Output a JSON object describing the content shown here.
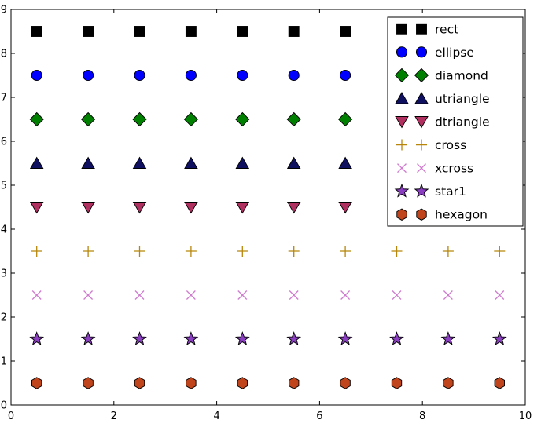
{
  "figure": {
    "background": "#ffffff",
    "frame_color": "#000000"
  },
  "chart_data": {
    "type": "scatter",
    "title": "",
    "xlabel": "",
    "ylabel": "",
    "xlim": [
      0,
      10
    ],
    "ylim": [
      0,
      9
    ],
    "grid": false,
    "xticks": [
      0,
      2,
      4,
      6,
      8,
      10
    ],
    "xtick_labels": [
      "0",
      "2",
      "4",
      "6",
      "8",
      "10"
    ],
    "yticks": [
      0,
      1,
      2,
      3,
      4,
      5,
      6,
      7,
      8,
      9
    ],
    "ytick_labels": [
      "0",
      "1",
      "2",
      "3",
      "4",
      "5",
      "6",
      "7",
      "8",
      "9"
    ],
    "x": [
      0.5,
      1.5,
      2.5,
      3.5,
      4.5,
      5.5,
      6.5,
      7.5,
      8.5,
      9.5
    ],
    "series": [
      {
        "name": "rect",
        "marker": "rect",
        "color": "#000000",
        "edge_color": "#000000",
        "y": 8.5
      },
      {
        "name": "ellipse",
        "marker": "ellipse",
        "color": "#0000ff",
        "edge_color": "#000000",
        "y": 7.5
      },
      {
        "name": "diamond",
        "marker": "diamond",
        "color": "#008000",
        "edge_color": "#000000",
        "y": 6.5
      },
      {
        "name": "utriangle",
        "marker": "utriangle",
        "color": "#101060",
        "edge_color": "#000000",
        "y": 5.5
      },
      {
        "name": "dtriangle",
        "marker": "dtriangle",
        "color": "#b03060",
        "edge_color": "#000000",
        "y": 4.5
      },
      {
        "name": "cross",
        "marker": "cross",
        "color": "#b8860b",
        "edge_color": "#b8860b",
        "y": 3.5
      },
      {
        "name": "xcross",
        "marker": "xcross",
        "color": "#cf7ccf",
        "edge_color": "#cf7ccf",
        "y": 2.5
      },
      {
        "name": "star1",
        "marker": "star1",
        "color": "#8a3fc0",
        "edge_color": "#000000",
        "y": 1.5
      },
      {
        "name": "hexagon",
        "marker": "hexagon",
        "color": "#c0451c",
        "edge_color": "#000000",
        "y": 0.5
      }
    ],
    "legend": {
      "position": "upper right",
      "numpoints": 2,
      "background": "#ffffff",
      "border_color": "#000000",
      "labels": [
        "rect",
        "ellipse",
        "diamond",
        "utriangle",
        "dtriangle",
        "cross",
        "xcross",
        "star1",
        "hexagon"
      ]
    }
  }
}
